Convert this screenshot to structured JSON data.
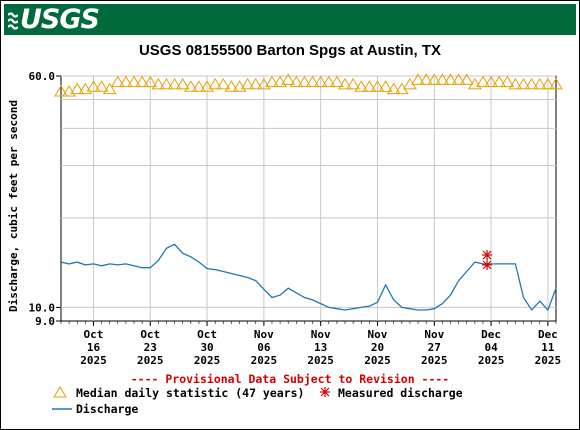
{
  "header": {
    "logo_text": "USGS"
  },
  "chart_data": {
    "type": "line",
    "title": "USGS 08155500 Barton Spgs at Austin, TX",
    "ylabel": "Discharge, cubic feet per second",
    "xlabel": "",
    "y_scale": "log",
    "ylim": [
      9.0,
      60.0
    ],
    "y_tick_labels": [
      "60.0",
      "10.0",
      "9.0"
    ],
    "y_ticks": [
      60.0,
      10.0,
      9.0
    ],
    "y_gridlines": [
      60,
      50,
      40,
      30,
      20,
      10
    ],
    "x_range": [
      "2025-10-12",
      "2025-12-12"
    ],
    "x_ticks": [
      {
        "date": "2025-10-16",
        "label": [
          "Oct",
          "16",
          "2025"
        ]
      },
      {
        "date": "2025-10-23",
        "label": [
          "Oct",
          "23",
          "2025"
        ]
      },
      {
        "date": "2025-10-30",
        "label": [
          "Oct",
          "30",
          "2025"
        ]
      },
      {
        "date": "2025-11-06",
        "label": [
          "Nov",
          "06",
          "2025"
        ]
      },
      {
        "date": "2025-11-13",
        "label": [
          "Nov",
          "13",
          "2025"
        ]
      },
      {
        "date": "2025-11-20",
        "label": [
          "Nov",
          "20",
          "2025"
        ]
      },
      {
        "date": "2025-11-27",
        "label": [
          "Nov",
          "27",
          "2025"
        ]
      },
      {
        "date": "2025-12-04",
        "label": [
          "Dec",
          "04",
          "2025"
        ]
      },
      {
        "date": "2025-12-11",
        "label": [
          "Dec",
          "11",
          "2025"
        ]
      }
    ],
    "grid": true,
    "legend_position": "bottom",
    "notice": "---- Provisional Data Subject to Revision ----",
    "series": [
      {
        "name": "Median daily statistic (47 years)",
        "marker": "triangle",
        "color": "#e6a100",
        "points": [
          [
            "2025-10-12",
            53
          ],
          [
            "2025-10-13",
            53
          ],
          [
            "2025-10-14",
            54
          ],
          [
            "2025-10-15",
            54
          ],
          [
            "2025-10-16",
            55
          ],
          [
            "2025-10-17",
            55
          ],
          [
            "2025-10-18",
            54
          ],
          [
            "2025-10-19",
            57
          ],
          [
            "2025-10-20",
            57
          ],
          [
            "2025-10-21",
            57
          ],
          [
            "2025-10-22",
            57
          ],
          [
            "2025-10-23",
            57
          ],
          [
            "2025-10-24",
            56
          ],
          [
            "2025-10-25",
            56
          ],
          [
            "2025-10-26",
            56
          ],
          [
            "2025-10-27",
            56
          ],
          [
            "2025-10-28",
            55
          ],
          [
            "2025-10-29",
            55
          ],
          [
            "2025-10-30",
            55
          ],
          [
            "2025-10-31",
            56
          ],
          [
            "2025-11-01",
            56
          ],
          [
            "2025-11-02",
            55
          ],
          [
            "2025-11-03",
            55
          ],
          [
            "2025-11-04",
            56
          ],
          [
            "2025-11-05",
            56
          ],
          [
            "2025-11-06",
            56
          ],
          [
            "2025-11-07",
            57
          ],
          [
            "2025-11-08",
            57
          ],
          [
            "2025-11-09",
            58
          ],
          [
            "2025-11-10",
            57
          ],
          [
            "2025-11-11",
            57
          ],
          [
            "2025-11-12",
            57
          ],
          [
            "2025-11-13",
            57
          ],
          [
            "2025-11-14",
            57
          ],
          [
            "2025-11-15",
            57
          ],
          [
            "2025-11-16",
            56
          ],
          [
            "2025-11-17",
            56
          ],
          [
            "2025-11-18",
            55
          ],
          [
            "2025-11-19",
            55
          ],
          [
            "2025-11-20",
            55
          ],
          [
            "2025-11-21",
            55
          ],
          [
            "2025-11-22",
            54
          ],
          [
            "2025-11-23",
            54
          ],
          [
            "2025-11-24",
            56
          ],
          [
            "2025-11-25",
            58
          ],
          [
            "2025-11-26",
            58
          ],
          [
            "2025-11-27",
            58
          ],
          [
            "2025-11-28",
            58
          ],
          [
            "2025-11-29",
            58
          ],
          [
            "2025-11-30",
            58
          ],
          [
            "2025-12-01",
            58
          ],
          [
            "2025-12-02",
            56
          ],
          [
            "2025-12-03",
            57
          ],
          [
            "2025-12-04",
            57
          ],
          [
            "2025-12-05",
            57
          ],
          [
            "2025-12-06",
            57
          ],
          [
            "2025-12-07",
            56
          ],
          [
            "2025-12-08",
            56
          ],
          [
            "2025-12-09",
            56
          ],
          [
            "2025-12-10",
            56
          ],
          [
            "2025-12-11",
            56
          ],
          [
            "2025-12-12",
            56
          ]
        ]
      },
      {
        "name": "Measured discharge",
        "marker": "asterisk",
        "color": "#d40000",
        "points": [
          [
            "2025-12-04",
            15.0
          ],
          [
            "2025-12-04",
            13.9
          ]
        ]
      },
      {
        "name": "Discharge",
        "marker": "line",
        "color": "#1f78b4",
        "points": [
          [
            "2025-10-12",
            14.2
          ],
          [
            "2025-10-13",
            14.0
          ],
          [
            "2025-10-14",
            14.2
          ],
          [
            "2025-10-15",
            13.9
          ],
          [
            "2025-10-16",
            14.0
          ],
          [
            "2025-10-17",
            13.8
          ],
          [
            "2025-10-18",
            14.0
          ],
          [
            "2025-10-19",
            13.9
          ],
          [
            "2025-10-20",
            14.0
          ],
          [
            "2025-10-21",
            13.8
          ],
          [
            "2025-10-22",
            13.6
          ],
          [
            "2025-10-23",
            13.6
          ],
          [
            "2025-10-24",
            14.4
          ],
          [
            "2025-10-25",
            15.8
          ],
          [
            "2025-10-26",
            16.3
          ],
          [
            "2025-10-27",
            15.2
          ],
          [
            "2025-10-28",
            14.8
          ],
          [
            "2025-10-29",
            14.2
          ],
          [
            "2025-10-30",
            13.5
          ],
          [
            "2025-10-31",
            13.4
          ],
          [
            "2025-11-01",
            13.2
          ],
          [
            "2025-11-02",
            13.0
          ],
          [
            "2025-11-03",
            12.8
          ],
          [
            "2025-11-04",
            12.6
          ],
          [
            "2025-11-05",
            12.3
          ],
          [
            "2025-11-06",
            11.5
          ],
          [
            "2025-11-07",
            10.8
          ],
          [
            "2025-11-08",
            11.0
          ],
          [
            "2025-11-09",
            11.6
          ],
          [
            "2025-11-10",
            11.2
          ],
          [
            "2025-11-11",
            10.8
          ],
          [
            "2025-11-12",
            10.6
          ],
          [
            "2025-11-13",
            10.3
          ],
          [
            "2025-11-14",
            10.0
          ],
          [
            "2025-11-15",
            9.9
          ],
          [
            "2025-11-16",
            9.8
          ],
          [
            "2025-11-17",
            9.9
          ],
          [
            "2025-11-18",
            10.0
          ],
          [
            "2025-11-19",
            10.1
          ],
          [
            "2025-11-20",
            10.4
          ],
          [
            "2025-11-21",
            11.9
          ],
          [
            "2025-11-22",
            10.6
          ],
          [
            "2025-11-23",
            10.0
          ],
          [
            "2025-11-24",
            9.9
          ],
          [
            "2025-11-25",
            9.8
          ],
          [
            "2025-11-26",
            9.8
          ],
          [
            "2025-11-27",
            9.9
          ],
          [
            "2025-11-28",
            10.3
          ],
          [
            "2025-11-29",
            11.0
          ],
          [
            "2025-11-30",
            12.3
          ],
          [
            "2025-12-01",
            13.2
          ],
          [
            "2025-12-02",
            14.2
          ],
          [
            "2025-12-03",
            14.0
          ],
          [
            "2025-12-04",
            14.0
          ],
          [
            "2025-12-05",
            14.0
          ],
          [
            "2025-12-06",
            14.0
          ],
          [
            "2025-12-07",
            14.0
          ],
          [
            "2025-12-08",
            10.8
          ],
          [
            "2025-12-09",
            9.8
          ],
          [
            "2025-12-10",
            10.5
          ],
          [
            "2025-12-11",
            9.8
          ],
          [
            "2025-12-12",
            11.6
          ]
        ]
      }
    ]
  }
}
